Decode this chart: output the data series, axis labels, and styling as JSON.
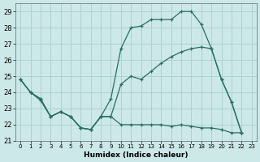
{
  "background_color": "#cce8e8",
  "grid_color": "#aacece",
  "line_color": "#2a6e62",
  "series1_x": [
    0,
    1,
    2,
    3,
    4,
    5,
    6,
    7,
    8,
    9,
    10,
    11,
    12,
    13,
    14,
    15,
    16,
    17,
    18,
    19,
    20,
    21,
    22
  ],
  "series1_y": [
    24.8,
    24.0,
    23.5,
    22.5,
    22.8,
    22.5,
    21.8,
    21.7,
    22.5,
    23.6,
    26.7,
    28.0,
    28.1,
    28.5,
    28.5,
    28.5,
    29.0,
    29.0,
    28.2,
    26.7,
    24.8,
    23.4,
    21.5
  ],
  "series2_x": [
    0,
    1,
    2,
    3,
    4,
    5,
    6,
    7,
    8,
    9,
    10,
    11,
    12,
    13,
    14,
    15,
    16,
    17,
    18,
    19,
    20,
    21,
    22
  ],
  "series2_y": [
    24.8,
    24.0,
    23.6,
    22.5,
    22.8,
    22.5,
    21.8,
    21.7,
    22.5,
    22.5,
    24.5,
    25.0,
    24.8,
    25.3,
    25.8,
    26.2,
    26.5,
    26.7,
    26.8,
    26.7,
    24.8,
    23.4,
    21.5
  ],
  "series3_x": [
    0,
    1,
    2,
    3,
    4,
    5,
    6,
    7,
    8,
    9,
    10,
    11,
    12,
    13,
    14,
    15,
    16,
    17,
    18,
    19,
    20,
    21,
    22
  ],
  "series3_y": [
    24.8,
    24.0,
    23.6,
    22.5,
    22.8,
    22.5,
    21.8,
    21.7,
    22.5,
    22.5,
    22.0,
    22.0,
    22.0,
    22.0,
    22.0,
    21.9,
    22.0,
    21.9,
    21.8,
    21.8,
    21.7,
    21.5,
    21.5
  ],
  "xlabel": "Humidex (Indice chaleur)",
  "xlim": [
    -0.5,
    23.5
  ],
  "ylim": [
    21,
    29.5
  ],
  "yticks": [
    21,
    22,
    23,
    24,
    25,
    26,
    27,
    28,
    29
  ],
  "xticks": [
    0,
    1,
    2,
    3,
    4,
    5,
    6,
    7,
    8,
    9,
    10,
    11,
    12,
    13,
    14,
    15,
    16,
    17,
    18,
    19,
    20,
    21,
    22,
    23
  ],
  "xtick_labels": [
    "0",
    "1",
    "2",
    "3",
    "4",
    "5",
    "6",
    "7",
    "8",
    "9",
    "10",
    "11",
    "12",
    "13",
    "14",
    "15",
    "16",
    "17",
    "18",
    "19",
    "20",
    "21",
    "22",
    "23"
  ]
}
